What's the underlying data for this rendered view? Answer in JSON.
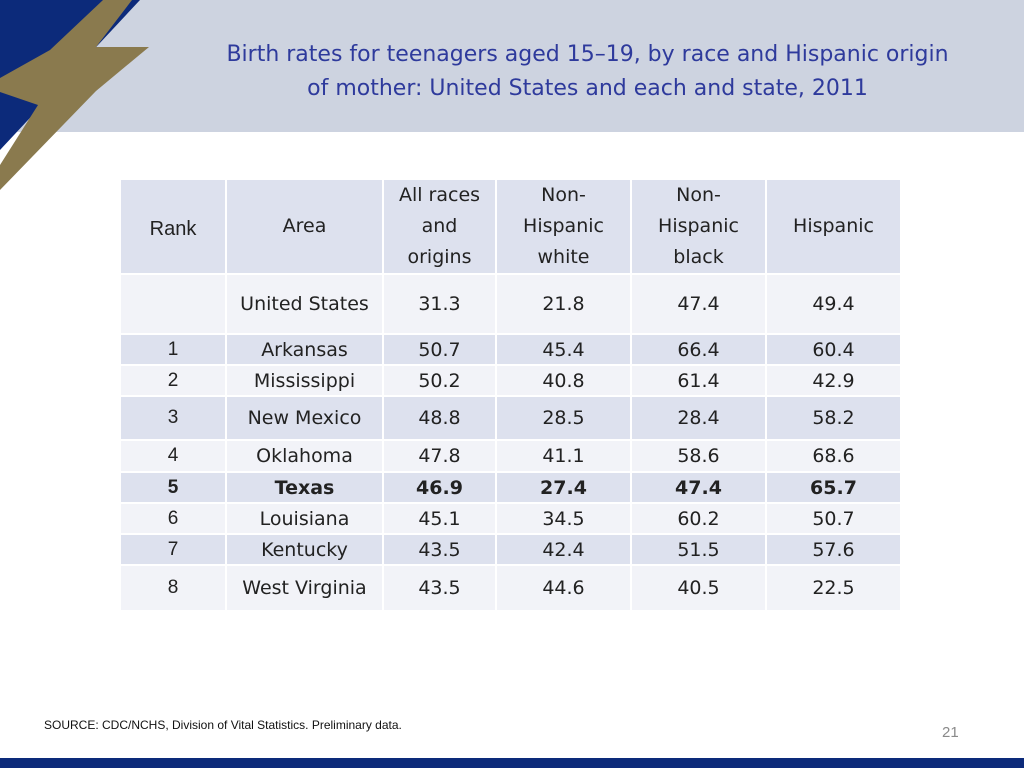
{
  "title": {
    "line1": "Birth rates for teenagers aged 15–19, by race and Hispanic origin",
    "line2": "of mother: United States and each and state, 2011"
  },
  "table": {
    "headers": {
      "rank": "Rank",
      "area": "Area",
      "all": [
        "All races",
        "and",
        "origins"
      ],
      "nhw": [
        "Non-",
        "Hispanic",
        "white"
      ],
      "nhb": [
        "Non-",
        "Hispanic",
        "black"
      ],
      "his": "Hispanic"
    },
    "us": {
      "area": "United States",
      "all": "31.3",
      "nhw": "21.8",
      "nhb": "47.4",
      "his": "49.4"
    },
    "rows": [
      {
        "rank": "1",
        "area": "Arkansas",
        "all": "50.7",
        "nhw": "45.4",
        "nhb": "66.4",
        "his": "60.4"
      },
      {
        "rank": "2",
        "area": "Mississippi",
        "all": "50.2",
        "nhw": "40.8",
        "nhb": "61.4",
        "his": "42.9"
      },
      {
        "rank": "3",
        "area": "New Mexico",
        "all": "48.8",
        "nhw": "28.5",
        "nhb": "28.4",
        "his": "58.2"
      },
      {
        "rank": "4",
        "area": "Oklahoma",
        "all": "47.8",
        "nhw": "41.1",
        "nhb": "58.6",
        "his": "68.6"
      },
      {
        "rank": "5",
        "area": "Texas",
        "all": "46.9",
        "nhw": "27.4",
        "nhb": "47.4",
        "his": "65.7"
      },
      {
        "rank": "6",
        "area": "Louisiana",
        "all": "45.1",
        "nhw": "34.5",
        "nhb": "60.2",
        "his": "50.7"
      },
      {
        "rank": "7",
        "area": "Kentucky",
        "all": "43.5",
        "nhw": "42.4",
        "nhb": "51.5",
        "his": "57.6"
      },
      {
        "rank": "8",
        "area": "West Virginia",
        "all": "43.5",
        "nhw": "44.6",
        "nhb": "40.5",
        "his": "22.5"
      }
    ]
  },
  "source": "SOURCE: CDC/NCHS, Division of Vital Statistics. Preliminary data.",
  "page_number": "21",
  "colors": {
    "title": "#2e3a9c",
    "header_band": "#cdd3e0",
    "logo_navy": "#0c2a7a",
    "logo_gold": "#8a7a4e",
    "table_header": "#dde1ee",
    "table_light": "#f2f3f8"
  },
  "icons": {
    "logo": "star-logo"
  }
}
